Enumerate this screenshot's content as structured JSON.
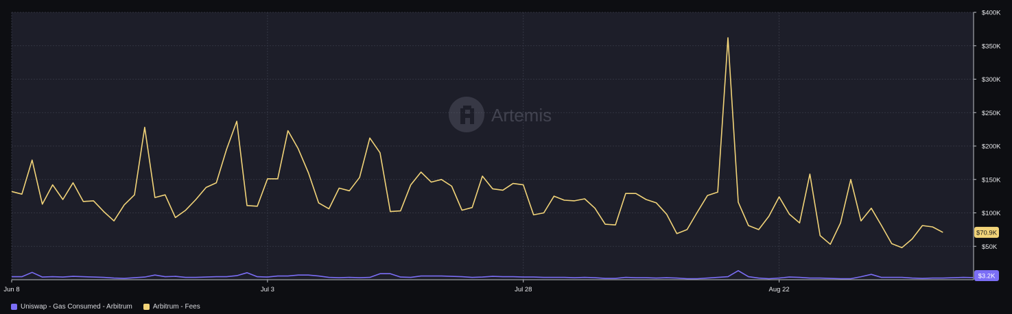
{
  "watermark": {
    "text": "Artemis",
    "icon": "artemis-logo-icon"
  },
  "colors": {
    "background": "#0d0e12",
    "plot_background": "#1d1e29",
    "grid": "#3a3c4a",
    "axis_text": "#e6e7ea",
    "fees_line": "#f2d479",
    "gas_line": "#7b6ef6"
  },
  "chart_data": {
    "type": "line",
    "x_tick_labels": [
      "Jun 8",
      "Jul 3",
      "Jul 28",
      "Aug 22"
    ],
    "x_tick_indices": [
      0,
      25,
      50,
      75
    ],
    "y_axis": {
      "position": "right",
      "min": 0,
      "max": 400000,
      "tick_labels": [
        "$50K",
        "$100K",
        "$150K",
        "$200K",
        "$250K",
        "$300K",
        "$350K",
        "$400K"
      ],
      "tick_values": [
        50000,
        100000,
        150000,
        200000,
        250000,
        300000,
        350000,
        400000
      ]
    },
    "grid": true,
    "legend_position": "bottom-left",
    "series": [
      {
        "name": "Uniswap - Gas Consumed - Arbitrum",
        "color": "#7b6ef6",
        "last_value_label": "$3.2K",
        "values": [
          4500,
          4500,
          11000,
          4000,
          4500,
          4000,
          5000,
          4500,
          4000,
          3500,
          2500,
          2000,
          3000,
          4000,
          7000,
          4500,
          5000,
          3500,
          3500,
          4000,
          4500,
          4500,
          6000,
          10500,
          4500,
          4000,
          5500,
          5500,
          7000,
          7000,
          5500,
          3500,
          3000,
          3500,
          3000,
          3500,
          9000,
          9000,
          4000,
          3500,
          5500,
          5500,
          5500,
          5000,
          4500,
          3500,
          4000,
          5000,
          4500,
          4500,
          4000,
          4000,
          3500,
          3500,
          3500,
          3000,
          3500,
          3000,
          2000,
          2000,
          3500,
          3000,
          3000,
          2500,
          3000,
          2500,
          1500,
          1500,
          2500,
          3500,
          4500,
          13500,
          4500,
          2500,
          1500,
          2500,
          4000,
          3500,
          2500,
          2500,
          2000,
          1500,
          1500,
          4500,
          8000,
          3500,
          3500,
          3500,
          2500,
          2000,
          2500,
          2500,
          3000,
          3500,
          3200
        ]
      },
      {
        "name": "Arbitrum - Fees",
        "color": "#f2d479",
        "last_value_label": "$70.9K",
        "values": [
          132000,
          128000,
          179000,
          113000,
          142000,
          120000,
          145000,
          117000,
          118000,
          102000,
          88000,
          112000,
          127000,
          228000,
          123000,
          127000,
          93000,
          104000,
          120000,
          138000,
          145000,
          195000,
          237000,
          111000,
          110000,
          151000,
          151000,
          223000,
          196000,
          160000,
          115000,
          106000,
          137000,
          133000,
          153000,
          212000,
          190000,
          102000,
          103000,
          142000,
          161000,
          146000,
          150000,
          140000,
          104000,
          108000,
          155000,
          136000,
          134000,
          144000,
          142000,
          97000,
          100000,
          125000,
          119000,
          118000,
          121000,
          107000,
          83000,
          82000,
          129000,
          129000,
          120000,
          115000,
          98000,
          69000,
          75000,
          101000,
          126000,
          131000,
          362000,
          116000,
          81000,
          75000,
          95000,
          124000,
          98000,
          85000,
          158000,
          66000,
          53000,
          85000,
          150000,
          88000,
          107000,
          81000,
          54000,
          48000,
          61000,
          81000,
          79000,
          70900
        ]
      }
    ]
  }
}
